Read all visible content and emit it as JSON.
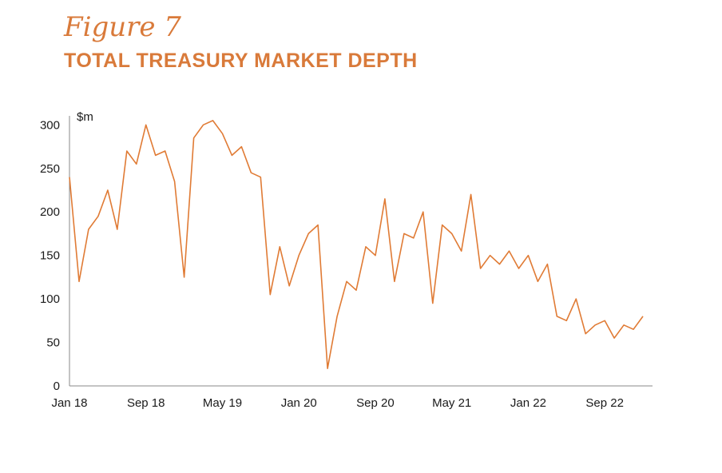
{
  "figure_label": "Figure 7",
  "title": "TOTAL TREASURY MARKET DEPTH",
  "chart_data": {
    "type": "line",
    "title": "TOTAL TREASURY MARKET DEPTH",
    "ylabel": "$m",
    "xlabel": "",
    "ylim": [
      0,
      310
    ],
    "yticks": [
      0,
      50,
      100,
      150,
      200,
      250,
      300
    ],
    "xlim": [
      "2018-01",
      "2023-02"
    ],
    "xticks": [
      {
        "label": "Jan 18",
        "x": "2018-01"
      },
      {
        "label": "Sep 18",
        "x": "2018-09"
      },
      {
        "label": "May 19",
        "x": "2019-05"
      },
      {
        "label": "Jan 20",
        "x": "2020-01"
      },
      {
        "label": "Sep 20",
        "x": "2020-09"
      },
      {
        "label": "May 21",
        "x": "2021-05"
      },
      {
        "label": "Jan 22",
        "x": "2022-01"
      },
      {
        "label": "Sep 22",
        "x": "2022-09"
      }
    ],
    "grid": false,
    "line_color": "#e07b35",
    "series": [
      {
        "x": [
          "2018-01",
          "2018-02",
          "2018-03",
          "2018-04",
          "2018-05",
          "2018-06",
          "2018-07",
          "2018-08",
          "2018-09",
          "2018-10",
          "2018-11",
          "2018-12",
          "2019-01",
          "2019-02",
          "2019-03",
          "2019-04",
          "2019-05",
          "2019-06",
          "2019-07",
          "2019-08",
          "2019-09",
          "2019-10",
          "2019-11",
          "2019-12",
          "2020-01",
          "2020-02",
          "2020-03",
          "2020-04",
          "2020-05",
          "2020-06",
          "2020-07",
          "2020-08",
          "2020-09",
          "2020-10",
          "2020-11",
          "2020-12",
          "2021-01",
          "2021-02",
          "2021-03",
          "2021-04",
          "2021-05",
          "2021-06",
          "2021-07",
          "2021-08",
          "2021-09",
          "2021-10",
          "2021-11",
          "2021-12",
          "2022-01",
          "2022-02",
          "2022-03",
          "2022-04",
          "2022-05",
          "2022-06",
          "2022-07",
          "2022-08",
          "2022-09",
          "2022-10",
          "2022-11",
          "2022-12",
          "2023-01"
        ],
        "values": [
          240,
          120,
          180,
          195,
          225,
          180,
          270,
          255,
          300,
          265,
          270,
          235,
          125,
          285,
          300,
          305,
          290,
          265,
          275,
          245,
          240,
          105,
          160,
          115,
          150,
          175,
          185,
          20,
          80,
          120,
          110,
          160,
          150,
          215,
          120,
          175,
          170,
          200,
          95,
          185,
          175,
          155,
          220,
          135,
          150,
          140,
          155,
          135,
          150,
          120,
          140,
          80,
          75,
          100,
          60,
          70,
          75,
          55,
          70,
          65,
          80
        ]
      }
    ]
  }
}
